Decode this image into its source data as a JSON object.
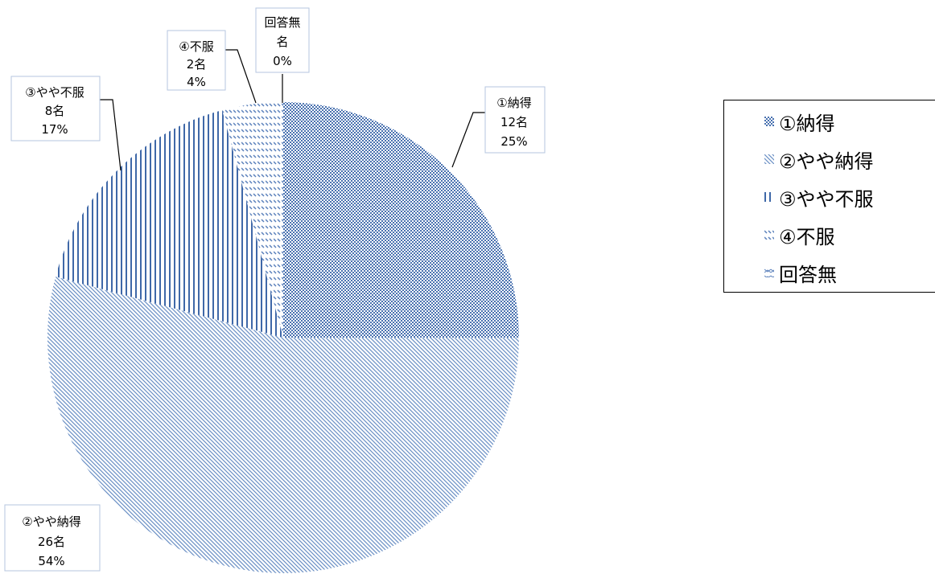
{
  "chart_data": {
    "type": "pie",
    "title": "",
    "unit": "名",
    "slices": [
      {
        "name": "①納得",
        "value": 12,
        "percent": "25%",
        "count_label": "12名",
        "pattern": "dots",
        "color": "#4a72b0"
      },
      {
        "name": "②やや納得",
        "value": 26,
        "percent": "54%",
        "count_label": "26名",
        "pattern": "diag-down",
        "color": "#6a8fc4"
      },
      {
        "name": "③やや不服",
        "value": 8,
        "percent": "17%",
        "count_label": "8名",
        "pattern": "vertical",
        "color": "#3f68a8"
      },
      {
        "name": "④不服",
        "value": 2,
        "percent": "4%",
        "count_label": "2名",
        "pattern": "horizontal-dash",
        "color": "#5a80bb"
      },
      {
        "name": "回答無",
        "value": 0,
        "percent": "0%",
        "count_label": "名",
        "pattern": "zigzag",
        "color": "#5a80bb"
      }
    ],
    "legend": {
      "position": "right",
      "items": [
        "①納得",
        "②やや納得",
        "③やや不服",
        "④不服",
        "回答無"
      ]
    }
  }
}
